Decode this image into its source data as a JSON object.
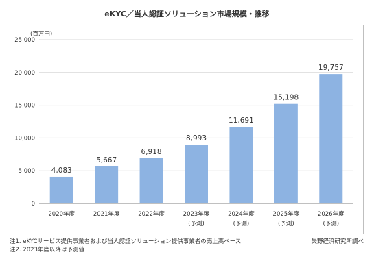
{
  "title": "eKYC／当人認証ソリューション市場規模・推移",
  "chart_data": {
    "type": "bar",
    "unit_label": "(百万円)",
    "categories": [
      [
        "2020年度"
      ],
      [
        "2021年度"
      ],
      [
        "2022年度"
      ],
      [
        "2023年度",
        "(予測)"
      ],
      [
        "2024年度",
        "(予測)"
      ],
      [
        "2025年度",
        "(予測)"
      ],
      [
        "2026年度",
        "(予測)"
      ]
    ],
    "values": [
      4083,
      5667,
      6918,
      8993,
      11691,
      15198,
      19757
    ],
    "data_labels": [
      "4,083",
      "5,667",
      "6,918",
      "8,993",
      "11,691",
      "15,198",
      "19,757"
    ],
    "ylim": [
      0,
      25000
    ],
    "yticks": [
      0,
      5000,
      10000,
      15000,
      20000,
      25000
    ],
    "ytick_labels": [
      "0",
      "5,000",
      "10,000",
      "15,000",
      "20,000",
      "25,000"
    ],
    "grid": true,
    "bar_color": "#8db3e2"
  },
  "notes": [
    "注1.  eKYCサービス提供事業者および当人認証ソリューション提供事業者の売上高ベース",
    "注2.  2023年度以降は予測値"
  ],
  "source": "矢野経済研究所調べ"
}
